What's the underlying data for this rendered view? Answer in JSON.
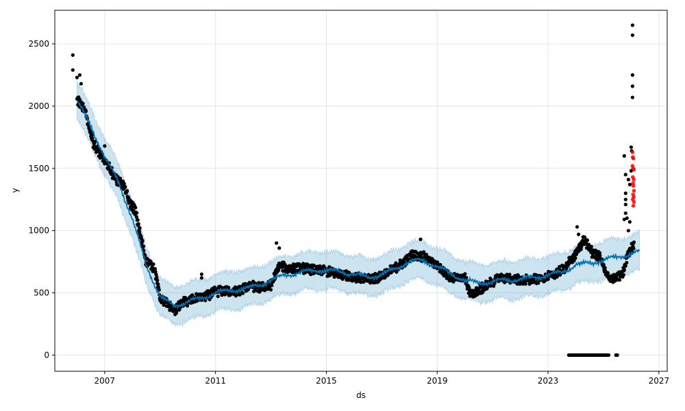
{
  "chart_data": {
    "type": "scatter",
    "title": "",
    "xlabel": "ds",
    "ylabel": "y",
    "xlim": [
      2005.2,
      2027.3
    ],
    "ylim": [
      -130,
      2770
    ],
    "x_ticks": [
      2007,
      2011,
      2015,
      2019,
      2023,
      2027
    ],
    "y_ticks": [
      0,
      500,
      1000,
      1500,
      2000,
      2500
    ],
    "grid": true,
    "legend": "none",
    "colors": {
      "observed": "#000000",
      "forecast": "#0072B2",
      "interval": "#0072B2",
      "anomaly": "#ff0000"
    },
    "trend_knots": [
      [
        2006.0,
        2040
      ],
      [
        2006.5,
        1840
      ],
      [
        2007.0,
        1590
      ],
      [
        2007.5,
        1390
      ],
      [
        2008.0,
        1090
      ],
      [
        2008.5,
        720
      ],
      [
        2009.0,
        470
      ],
      [
        2009.5,
        395
      ],
      [
        2010.0,
        430
      ],
      [
        2010.5,
        455
      ],
      [
        2011.0,
        500
      ],
      [
        2011.5,
        520
      ],
      [
        2012.0,
        530
      ],
      [
        2012.5,
        555
      ],
      [
        2013.0,
        600
      ],
      [
        2013.5,
        645
      ],
      [
        2014.0,
        660
      ],
      [
        2014.5,
        680
      ],
      [
        2015.0,
        680
      ],
      [
        2015.5,
        670
      ],
      [
        2016.0,
        650
      ],
      [
        2016.5,
        625
      ],
      [
        2017.0,
        645
      ],
      [
        2017.5,
        695
      ],
      [
        2018.0,
        750
      ],
      [
        2018.5,
        760
      ],
      [
        2019.0,
        710
      ],
      [
        2019.5,
        650
      ],
      [
        2020.0,
        600
      ],
      [
        2020.5,
        580
      ],
      [
        2021.0,
        590
      ],
      [
        2021.5,
        605
      ],
      [
        2022.0,
        610
      ],
      [
        2022.5,
        625
      ],
      [
        2023.0,
        640
      ],
      [
        2023.5,
        670
      ],
      [
        2024.0,
        720
      ],
      [
        2024.5,
        740
      ],
      [
        2025.0,
        760
      ],
      [
        2025.5,
        790
      ],
      [
        2026.0,
        810
      ],
      [
        2026.3,
        830
      ]
    ],
    "interval_halfwidth": 150,
    "observed_knots": [
      [
        2006.0,
        2060
      ],
      [
        2006.3,
        1950
      ],
      [
        2006.6,
        1700
      ],
      [
        2007.0,
        1560
      ],
      [
        2007.4,
        1420
      ],
      [
        2007.7,
        1360
      ],
      [
        2007.9,
        1220
      ],
      [
        2008.1,
        1170
      ],
      [
        2008.3,
        950
      ],
      [
        2008.5,
        750
      ],
      [
        2008.8,
        700
      ],
      [
        2009.0,
        460
      ],
      [
        2009.2,
        420
      ],
      [
        2009.5,
        360
      ],
      [
        2009.8,
        420
      ],
      [
        2010.2,
        445
      ],
      [
        2010.6,
        470
      ],
      [
        2011.0,
        510
      ],
      [
        2011.4,
        520
      ],
      [
        2011.8,
        510
      ],
      [
        2012.2,
        560
      ],
      [
        2012.6,
        540
      ],
      [
        2013.0,
        560
      ],
      [
        2013.3,
        720
      ],
      [
        2013.6,
        690
      ],
      [
        2014.0,
        700
      ],
      [
        2014.4,
        690
      ],
      [
        2014.9,
        680
      ],
      [
        2015.3,
        660
      ],
      [
        2015.8,
        640
      ],
      [
        2016.3,
        610
      ],
      [
        2016.8,
        620
      ],
      [
        2017.2,
        660
      ],
      [
        2017.7,
        730
      ],
      [
        2018.1,
        800
      ],
      [
        2018.5,
        790
      ],
      [
        2018.9,
        740
      ],
      [
        2019.3,
        650
      ],
      [
        2019.6,
        620
      ],
      [
        2020.0,
        630
      ],
      [
        2020.2,
        480
      ],
      [
        2020.5,
        520
      ],
      [
        2020.9,
        580
      ],
      [
        2021.3,
        620
      ],
      [
        2021.8,
        610
      ],
      [
        2022.3,
        600
      ],
      [
        2022.8,
        620
      ],
      [
        2023.2,
        640
      ],
      [
        2023.6,
        700
      ],
      [
        2023.9,
        780
      ],
      [
        2024.1,
        850
      ],
      [
        2024.3,
        930
      ],
      [
        2024.6,
        820
      ],
      [
        2024.9,
        780
      ],
      [
        2025.1,
        640
      ],
      [
        2025.4,
        610
      ],
      [
        2025.7,
        650
      ],
      [
        2025.9,
        830
      ],
      [
        2026.1,
        880
      ]
    ],
    "observed_noise": 30,
    "extra_observed_points": [
      [
        2005.85,
        2410
      ],
      [
        2005.85,
        2290
      ],
      [
        2006.0,
        2230
      ],
      [
        2006.1,
        2250
      ],
      [
        2006.15,
        2180
      ],
      [
        2007.0,
        1680
      ],
      [
        2013.2,
        900
      ],
      [
        2013.3,
        860
      ],
      [
        2010.5,
        650
      ],
      [
        2010.5,
        620
      ],
      [
        2018.4,
        930
      ],
      [
        2024.05,
        1030
      ],
      [
        2024.1,
        970
      ],
      [
        2025.75,
        1600
      ],
      [
        2025.8,
        1450
      ],
      [
        2025.9,
        1410
      ],
      [
        2025.8,
        1300
      ],
      [
        2025.8,
        1250
      ],
      [
        2025.8,
        1210
      ],
      [
        2025.8,
        1140
      ],
      [
        2025.85,
        1100
      ],
      [
        2025.95,
        1070
      ],
      [
        2026.0,
        1670
      ],
      [
        2026.02,
        1640
      ],
      [
        2026.05,
        2650
      ],
      [
        2026.05,
        2570
      ],
      [
        2026.05,
        2250
      ],
      [
        2026.05,
        2160
      ],
      [
        2026.05,
        2070
      ],
      [
        2025.75,
        1090
      ],
      [
        2025.9,
        1000
      ],
      [
        2026.0,
        1480
      ],
      [
        2025.95,
        1370
      ]
    ],
    "zero_observations": {
      "from": 2023.75,
      "to": 2025.2,
      "y": 0,
      "extra": [
        2025.45,
        2025.5
      ]
    },
    "anomaly_points": [
      [
        2026.05,
        1630
      ],
      [
        2026.06,
        1590
      ],
      [
        2026.08,
        1580
      ],
      [
        2026.05,
        1520
      ],
      [
        2026.07,
        1500
      ],
      [
        2026.1,
        1490
      ],
      [
        2026.06,
        1430
      ],
      [
        2026.09,
        1410
      ],
      [
        2026.07,
        1380
      ],
      [
        2026.08,
        1360
      ],
      [
        2026.1,
        1320
      ],
      [
        2026.07,
        1290
      ],
      [
        2026.09,
        1270
      ],
      [
        2026.06,
        1250
      ],
      [
        2026.1,
        1230
      ],
      [
        2026.08,
        1200
      ]
    ]
  }
}
